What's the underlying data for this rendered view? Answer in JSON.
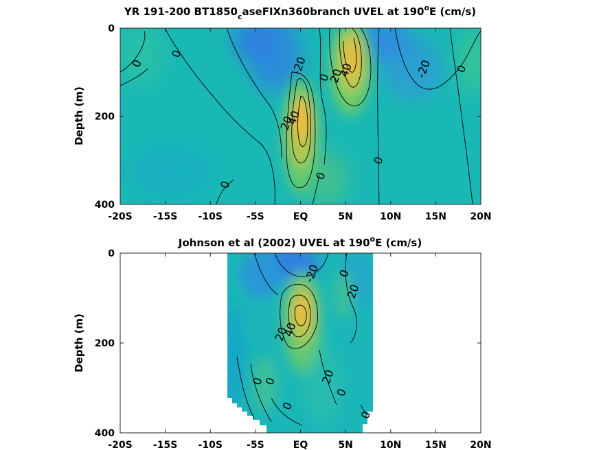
{
  "chart_data": [
    {
      "type": "heatmap",
      "title_main": "YR 191-200 BT1850",
      "title_sub": "c",
      "title_rest": "aseFIXn360branch UVEL at 190",
      "title_sup": "o",
      "title_end": "E (cm/s)",
      "ylabel": "Depth (m)",
      "xlabel": "",
      "x_ticks": [
        "-20S",
        "-15S",
        "-10S",
        "-5S",
        "EQ",
        "5N",
        "10N",
        "15N",
        "20N"
      ],
      "y_ticks": [
        "0",
        "200",
        "400"
      ],
      "xlim": [
        -20,
        20
      ],
      "ylim": [
        0,
        400
      ],
      "data_extent_x": [
        -20,
        20
      ],
      "contour_labels": [
        {
          "text": "0",
          "lat": -18.2,
          "depth": 80
        },
        {
          "text": "0",
          "lat": -13.8,
          "depth": 58
        },
        {
          "text": "-20",
          "lat": -0.2,
          "depth": 85
        },
        {
          "text": "0",
          "lat": 2.6,
          "depth": 112
        },
        {
          "text": "20",
          "lat": 3.9,
          "depth": 108
        },
        {
          "text": "40",
          "lat": 5.0,
          "depth": 95
        },
        {
          "text": "20",
          "lat": -1.6,
          "depth": 215
        },
        {
          "text": "40",
          "lat": -0.8,
          "depth": 203
        },
        {
          "text": "0",
          "lat": 2.2,
          "depth": 335
        },
        {
          "text": "0",
          "lat": -8.4,
          "depth": 355
        },
        {
          "text": "0",
          "lat": 8.6,
          "depth": 300
        },
        {
          "text": "-20",
          "lat": 13.6,
          "depth": 92
        },
        {
          "text": "0",
          "lat": 17.8,
          "depth": 92
        }
      ]
    },
    {
      "type": "heatmap",
      "title_main": "Johnson et al (2002) UVEL at 190",
      "title_sub": "",
      "title_rest": "",
      "title_sup": "o",
      "title_end": "E (cm/s)",
      "ylabel": "Depth (m)",
      "xlabel": "",
      "x_ticks": [
        "-20S",
        "-15S",
        "-10S",
        "-5S",
        "EQ",
        "5N",
        "10N",
        "15N",
        "20N"
      ],
      "y_ticks": [
        "0",
        "200",
        "400"
      ],
      "xlim": [
        -20,
        20
      ],
      "ylim": [
        0,
        400
      ],
      "data_extent_x": [
        -8,
        8
      ],
      "contour_labels": [
        {
          "text": "-20",
          "lat": 1.2,
          "depth": 45
        },
        {
          "text": "0",
          "lat": 4.8,
          "depth": 45
        },
        {
          "text": "20",
          "lat": 5.8,
          "depth": 85
        },
        {
          "text": "40",
          "lat": -1.2,
          "depth": 170
        },
        {
          "text": "20",
          "lat": -2.2,
          "depth": 180
        },
        {
          "text": "0",
          "lat": -4.8,
          "depth": 285
        },
        {
          "text": "0",
          "lat": -3.4,
          "depth": 285
        },
        {
          "text": "20",
          "lat": 3.0,
          "depth": 275
        },
        {
          "text": "0",
          "lat": 4.5,
          "depth": 310
        },
        {
          "text": "0",
          "lat": -1.5,
          "depth": 340
        },
        {
          "text": "0",
          "lat": 7.2,
          "depth": 360
        }
      ]
    }
  ]
}
